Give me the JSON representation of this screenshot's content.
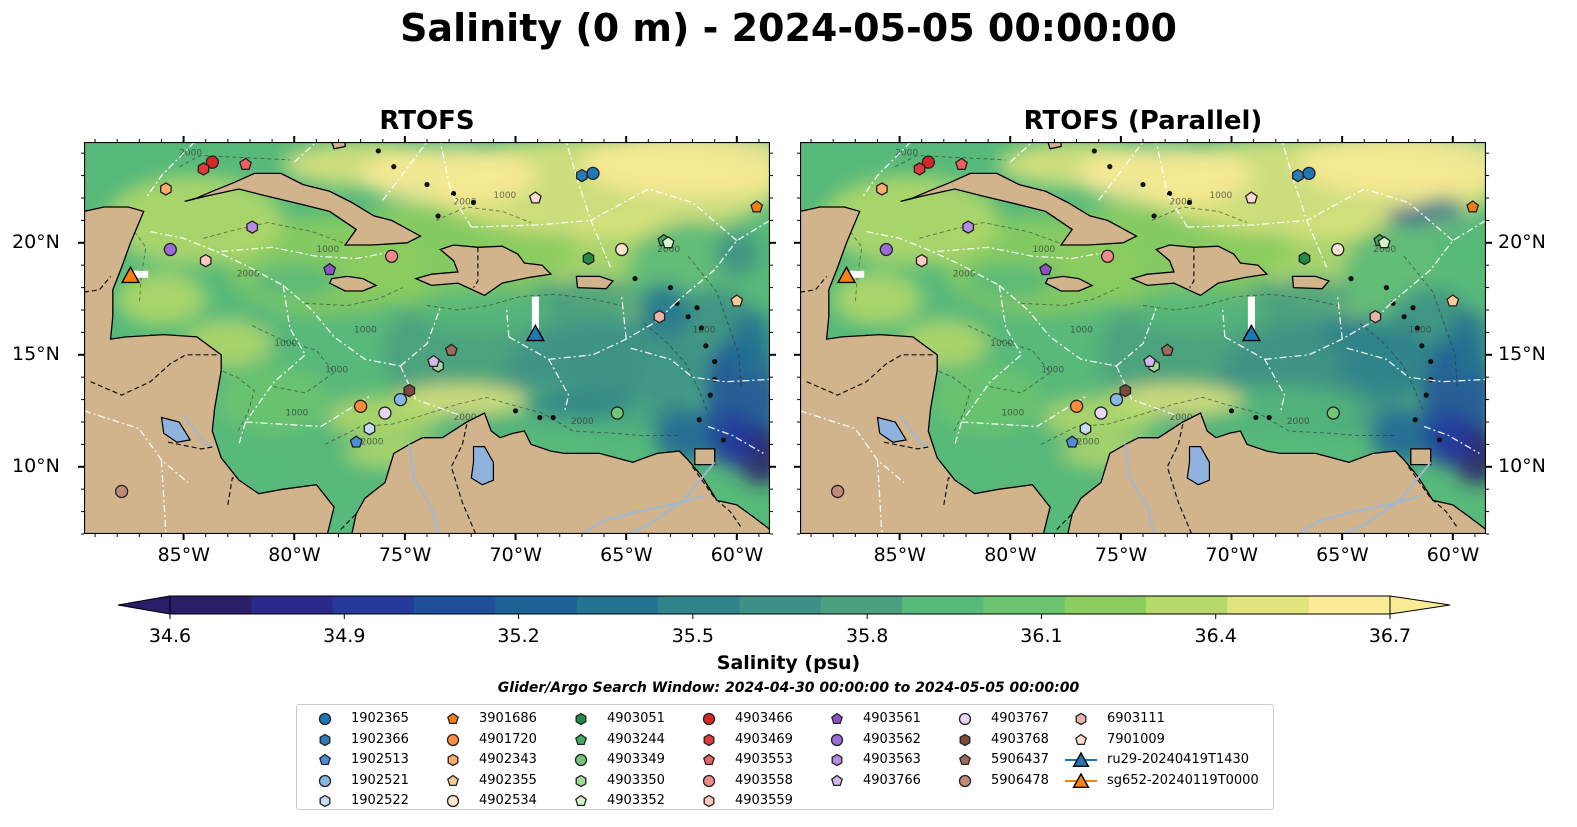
{
  "title": "Salinity (0 m) - 2024-05-05 00:00:00",
  "panels": [
    {
      "title": "RTOFS",
      "variant": "rtofs"
    },
    {
      "title": "RTOFS (Parallel)",
      "variant": "parallel"
    }
  ],
  "map": {
    "lon_range": [
      -89.5,
      -58.5
    ],
    "lat_range": [
      7,
      24.5
    ],
    "lon_ticks": [
      {
        "value": -85,
        "label": "85°W"
      },
      {
        "value": -80,
        "label": "80°W"
      },
      {
        "value": -75,
        "label": "75°W"
      },
      {
        "value": -70,
        "label": "70°W"
      },
      {
        "value": -65,
        "label": "65°W"
      },
      {
        "value": -60,
        "label": "60°W"
      }
    ],
    "lat_ticks": [
      {
        "value": 20,
        "label": "20°N"
      },
      {
        "value": 15,
        "label": "15°N"
      },
      {
        "value": 10,
        "label": "10°N"
      }
    ],
    "land_color": "#d2b48c",
    "lake_color": "#8fb2de",
    "ocean_base_color": "#57b97a"
  },
  "colorbar": {
    "min": 34.6,
    "max": 36.7,
    "ticks": [
      "34.6",
      "34.9",
      "35.2",
      "35.5",
      "35.8",
      "36.1",
      "36.4",
      "36.7"
    ],
    "label": "Salinity (psu)",
    "colors": [
      "#2a1e69",
      "#2b2a8c",
      "#263a9b",
      "#1f4f9b",
      "#1d6396",
      "#237490",
      "#2f838b",
      "#3d9186",
      "#4aa07f",
      "#57b97a",
      "#6cc46e",
      "#8ccd5f",
      "#b6d96a",
      "#e2e47e",
      "#fbeb96"
    ]
  },
  "search_window": "Glider/Argo Search Window: 2024-04-30 00:00:00 to 2024-05-05 00:00:00",
  "legend": [
    {
      "label": "1902365",
      "marker": "circle",
      "color": "#1f77b4"
    },
    {
      "label": "1902366",
      "marker": "hexagon",
      "color": "#2b7bba"
    },
    {
      "label": "1902513",
      "marker": "pentagon",
      "color": "#4a90d9"
    },
    {
      "label": "1902521",
      "marker": "circle",
      "color": "#86b8e6"
    },
    {
      "label": "1902522",
      "marker": "hexagon",
      "color": "#c6dbef"
    },
    {
      "label": "3901686",
      "marker": "pentagon",
      "color": "#f17d16"
    },
    {
      "label": "4901720",
      "marker": "circle",
      "color": "#fd8d3c"
    },
    {
      "label": "4902343",
      "marker": "hexagon",
      "color": "#fdae6b"
    },
    {
      "label": "4902355",
      "marker": "pentagon",
      "color": "#fdc995"
    },
    {
      "label": "4902534",
      "marker": "circle",
      "color": "#fee6ce"
    },
    {
      "label": "4903051",
      "marker": "hexagon",
      "color": "#238b45"
    },
    {
      "label": "4903244",
      "marker": "pentagon",
      "color": "#41ab5d"
    },
    {
      "label": "4903349",
      "marker": "circle",
      "color": "#74c476"
    },
    {
      "label": "4903350",
      "marker": "hexagon",
      "color": "#a1d99b"
    },
    {
      "label": "4903352",
      "marker": "pentagon",
      "color": "#d4f5c9"
    },
    {
      "label": "4903466",
      "marker": "circle",
      "color": "#d62728"
    },
    {
      "label": "4903469",
      "marker": "hexagon",
      "color": "#e0393b"
    },
    {
      "label": "4903553",
      "marker": "pentagon",
      "color": "#f06060"
    },
    {
      "label": "4903558",
      "marker": "circle",
      "color": "#f08a8a"
    },
    {
      "label": "4903559",
      "marker": "hexagon",
      "color": "#fcc8c0"
    },
    {
      "label": "4903561",
      "marker": "pentagon",
      "color": "#8c55c4"
    },
    {
      "label": "4903562",
      "marker": "circle",
      "color": "#9c6ad6"
    },
    {
      "label": "4903563",
      "marker": "hexagon",
      "color": "#b68ce3"
    },
    {
      "label": "4903766",
      "marker": "pentagon",
      "color": "#d3b8f0"
    },
    {
      "label": "4903767",
      "marker": "circle",
      "color": "#e8d6f7"
    },
    {
      "label": "4903768",
      "marker": "hexagon",
      "color": "#7a4a3f"
    },
    {
      "label": "5906437",
      "marker": "pentagon",
      "color": "#9c6b5f"
    },
    {
      "label": "5906478",
      "marker": "circle",
      "color": "#c08a7a"
    },
    {
      "label": "6903111",
      "marker": "hexagon",
      "color": "#e8b4a6"
    },
    {
      "label": "7901009",
      "marker": "pentagon",
      "color": "#fbdcd2"
    },
    {
      "label": "ru29-20240419T1430",
      "marker": "triangle-line",
      "color": "#1f77b4"
    },
    {
      "label": "sg652-20240119T0000",
      "marker": "triangle-line",
      "color": "#ff7f0e"
    }
  ],
  "floats": [
    {
      "id": "1902365",
      "lon": -66.5,
      "lat": 23.1
    },
    {
      "id": "1902366",
      "lon": -67.0,
      "lat": 23.0
    },
    {
      "id": "1902513",
      "lon": -77.2,
      "lat": 11.1
    },
    {
      "id": "1902521",
      "lon": -75.2,
      "lat": 13.0
    },
    {
      "id": "1902522",
      "lon": -76.6,
      "lat": 11.7
    },
    {
      "id": "3901686",
      "lon": -59.1,
      "lat": 21.6
    },
    {
      "id": "4901720",
      "lon": -77.0,
      "lat": 12.7
    },
    {
      "id": "4902343",
      "lon": -85.8,
      "lat": 22.4
    },
    {
      "id": "4902355",
      "lon": -60.0,
      "lat": 17.4
    },
    {
      "id": "4902534",
      "lon": -65.2,
      "lat": 19.7
    },
    {
      "id": "4903051",
      "lon": -66.7,
      "lat": 19.3
    },
    {
      "id": "4903244",
      "lon": -63.3,
      "lat": 20.1
    },
    {
      "id": "4903349",
      "lon": -65.4,
      "lat": 12.4
    },
    {
      "id": "4903350",
      "lon": -73.5,
      "lat": 14.5
    },
    {
      "id": "4903352",
      "lon": -63.1,
      "lat": 20.0
    },
    {
      "id": "4903466",
      "lon": -83.7,
      "lat": 23.6
    },
    {
      "id": "4903469",
      "lon": -84.1,
      "lat": 23.3
    },
    {
      "id": "4903553",
      "lon": -82.2,
      "lat": 23.5
    },
    {
      "id": "4903558",
      "lon": -75.6,
      "lat": 19.4
    },
    {
      "id": "4903559",
      "lon": -84.0,
      "lat": 19.2
    },
    {
      "id": "4903561",
      "lon": -78.4,
      "lat": 18.8
    },
    {
      "id": "4903562",
      "lon": -85.6,
      "lat": 19.7
    },
    {
      "id": "4903563",
      "lon": -81.9,
      "lat": 20.7
    },
    {
      "id": "4903766",
      "lon": -73.7,
      "lat": 14.7
    },
    {
      "id": "4903767",
      "lon": -75.9,
      "lat": 12.4
    },
    {
      "id": "4903768",
      "lon": -74.8,
      "lat": 13.4
    },
    {
      "id": "5906437",
      "lon": -72.9,
      "lat": 15.2
    },
    {
      "id": "5906478",
      "lon": -87.8,
      "lat": 8.9
    },
    {
      "id": "6903111",
      "lon": -63.5,
      "lat": 16.7
    },
    {
      "id": "7901009",
      "lon": -69.1,
      "lat": 22.0
    }
  ],
  "gliders": [
    {
      "id": "ru29-20240419T1430",
      "track_lon": [
        -69.1,
        -69.1
      ],
      "track_lat": [
        17.6,
        16.1
      ],
      "lon": -69.1,
      "lat": 15.9
    },
    {
      "id": "sg652-20240119T0000",
      "track_lon": [
        -87.4,
        -86.6
      ],
      "track_lat": [
        18.6,
        18.6
      ],
      "lon": -87.4,
      "lat": 18.5
    }
  ]
}
